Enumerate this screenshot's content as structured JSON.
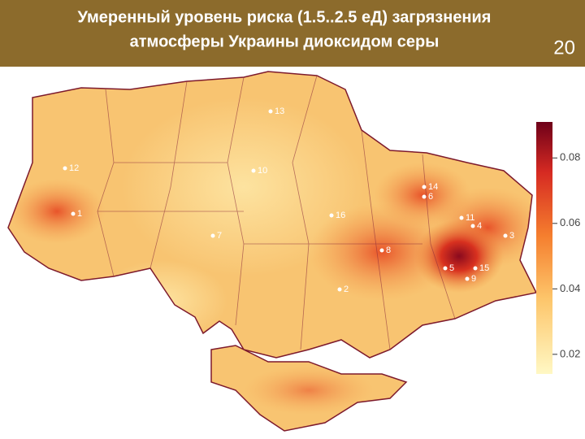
{
  "header": {
    "title_lines": [
      "Умеренный уровень риска (1.5..2.5 еД) загрязнения",
      "атмосферы Украины диоксидом серы"
    ],
    "slide_number": 20
  },
  "colorbar": {
    "lim": [
      0.014,
      0.091
    ],
    "ticks": [
      0.02,
      0.04,
      0.06,
      0.08
    ]
  },
  "cities": [
    "1",
    "2",
    "3",
    "4",
    "5",
    "6",
    "7",
    "8",
    "9",
    "10",
    "11",
    "12",
    "13",
    "14",
    "15",
    "16"
  ]
}
